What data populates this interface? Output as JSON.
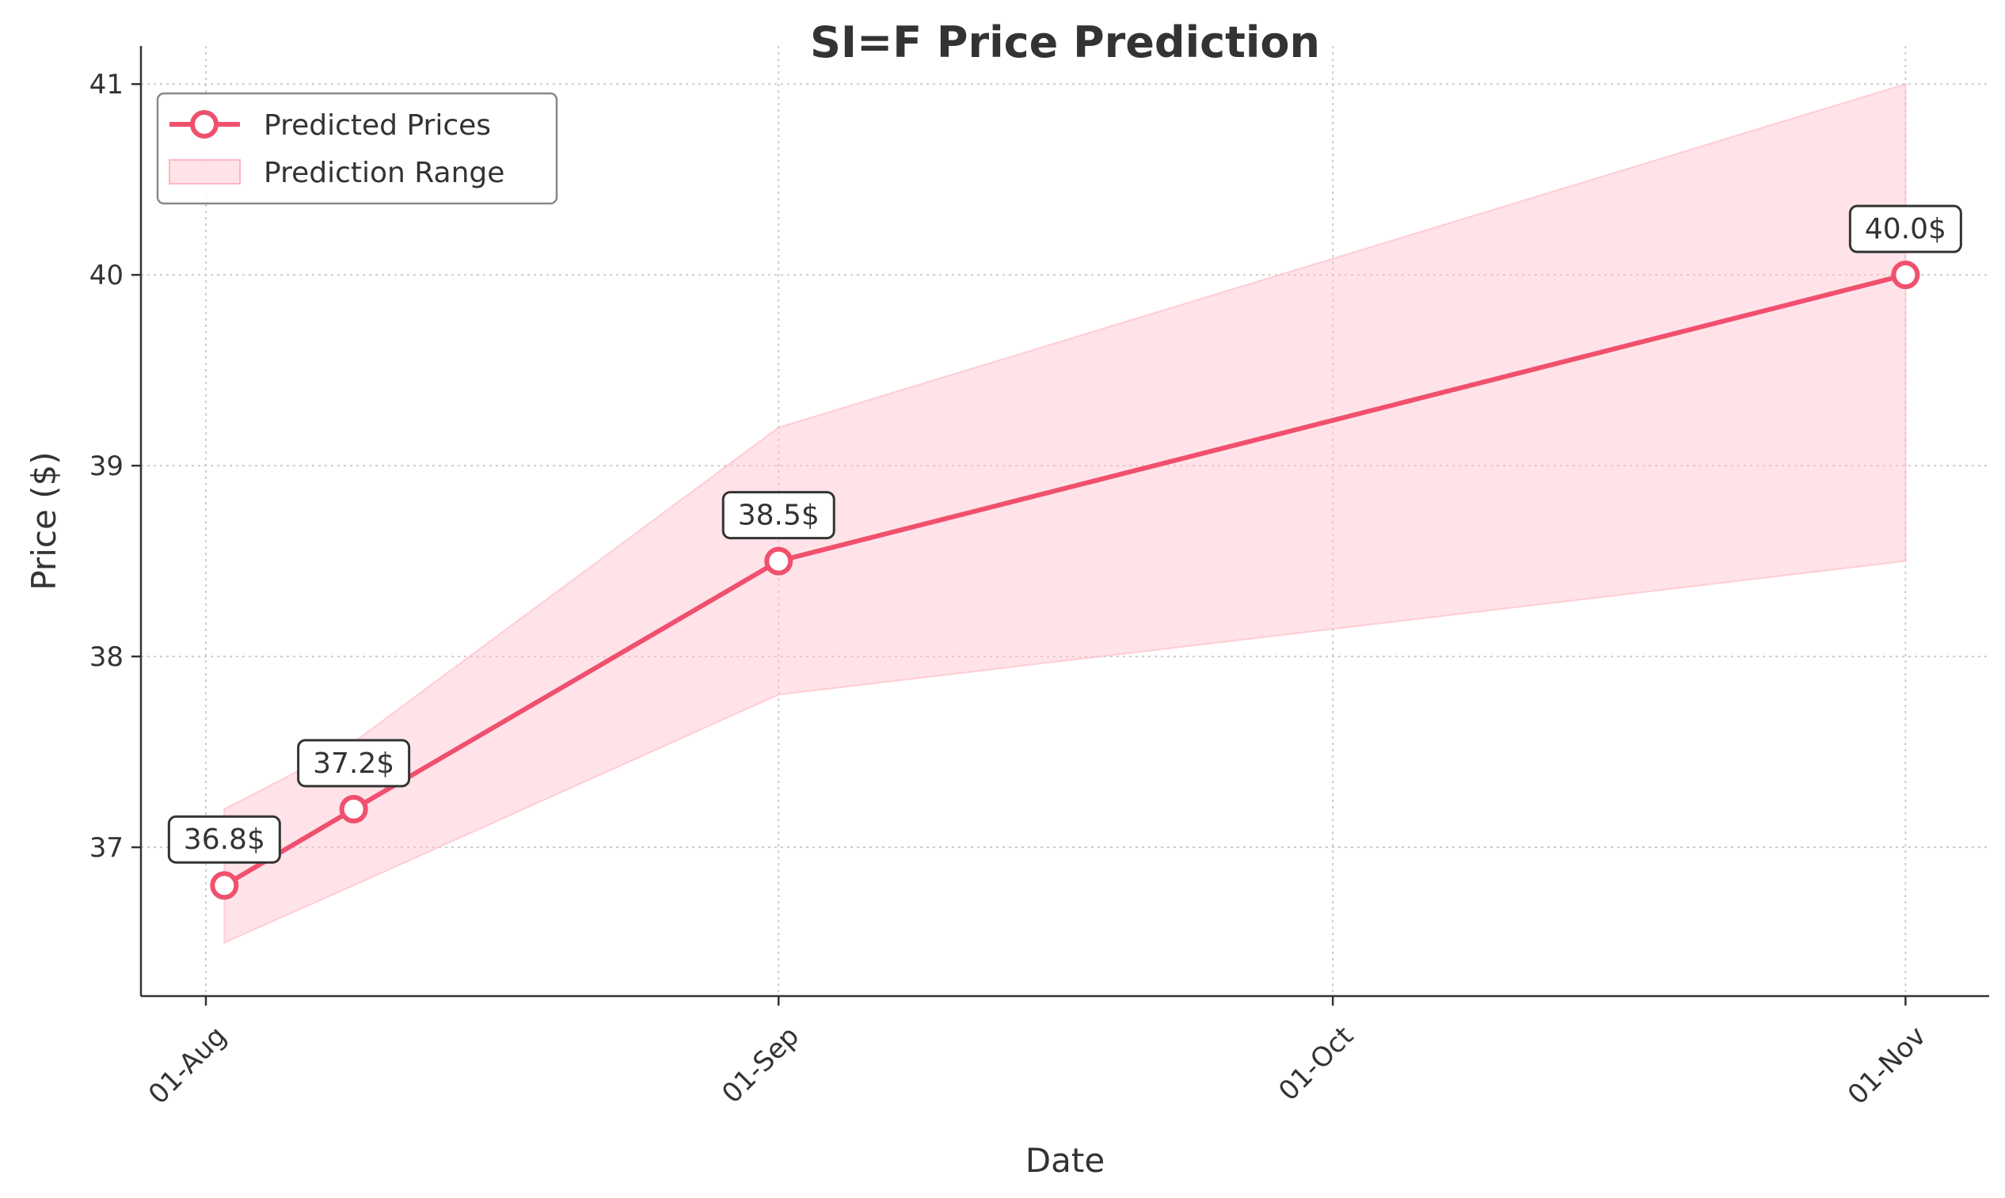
{
  "chart_data": {
    "type": "line",
    "title": "SI=F Price Prediction",
    "xlabel": "Date",
    "ylabel": "Price ($)",
    "x_ticks": [
      "01-Aug",
      "01-Sep",
      "01-Oct",
      "01-Nov"
    ],
    "y_ticks": [
      "37",
      "38",
      "39",
      "40",
      "41"
    ],
    "ylim": [
      36.22,
      41.2
    ],
    "grid": true,
    "legend_position": "top-left",
    "series": [
      {
        "name": "Predicted Prices",
        "color": "#f0506e",
        "points": [
          {
            "date": "2025-08-02",
            "value": 36.8,
            "label": "36.8$"
          },
          {
            "date": "2025-08-09",
            "value": 37.2,
            "label": "37.2$"
          },
          {
            "date": "2025-09-01",
            "value": 38.5,
            "label": "38.5$"
          },
          {
            "date": "2025-11-01",
            "value": 40.0,
            "label": "40.0$"
          }
        ]
      }
    ],
    "range": {
      "name": "Prediction Range",
      "color": "#ffc0cb",
      "points": [
        {
          "date": "2025-08-02",
          "low": 36.5,
          "high": 37.2
        },
        {
          "date": "2025-08-09",
          "low": 36.8,
          "high": 37.55
        },
        {
          "date": "2025-09-01",
          "low": 37.8,
          "high": 39.2
        },
        {
          "date": "2025-11-01",
          "low": 38.5,
          "high": 41.0
        }
      ]
    }
  }
}
